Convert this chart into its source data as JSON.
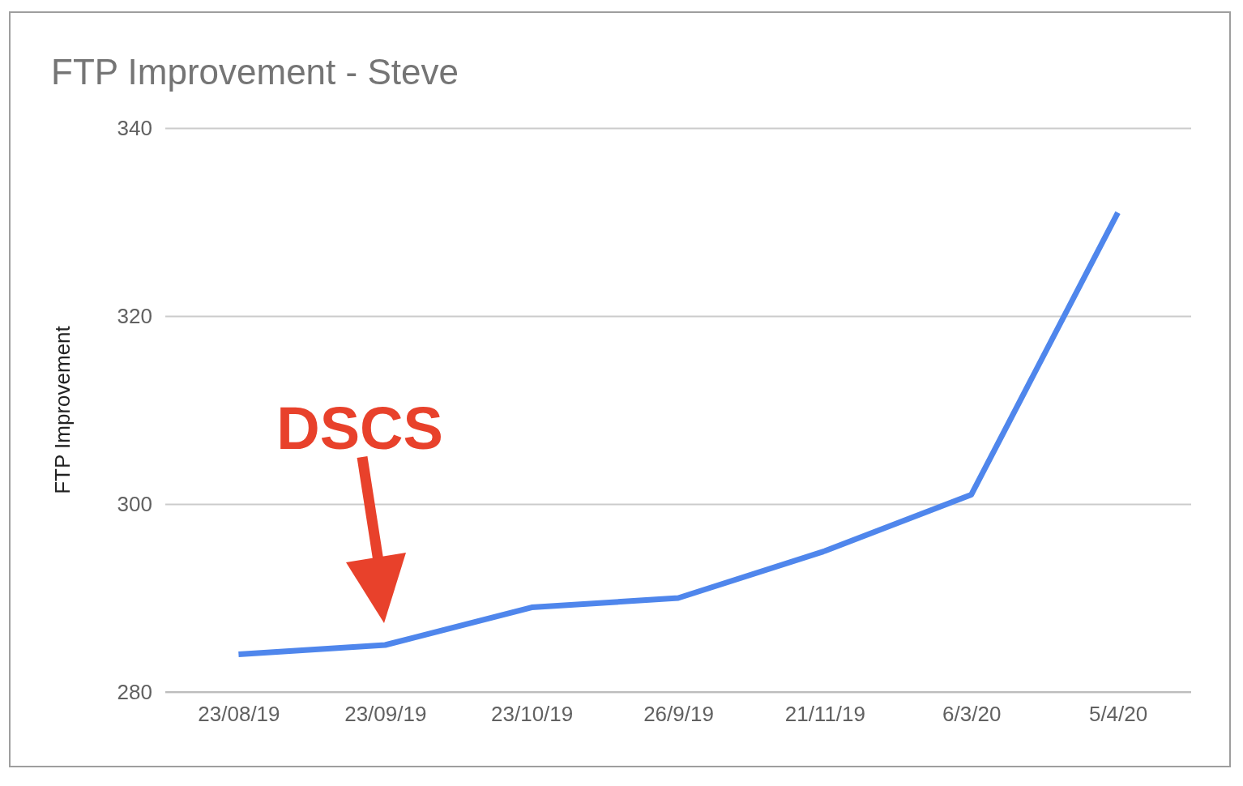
{
  "chart_data": {
    "type": "line",
    "title": "FTP Improvement - Steve",
    "ylabel": "FTP Improvement",
    "categories": [
      "23/08/19",
      "23/09/19",
      "23/10/19",
      "26/9/19",
      "21/11/19",
      "6/3/20",
      "5/4/20"
    ],
    "series": [
      {
        "color": "#4f86ec",
        "values": [
          284,
          285,
          289,
          290,
          295,
          301,
          331
        ]
      }
    ],
    "ylim": [
      280,
      340
    ],
    "yticks": [
      280,
      300,
      320,
      340
    ],
    "grid": "y",
    "marker": "none",
    "line_style": "solid",
    "annotations": [
      "DSCS"
    ]
  }
}
